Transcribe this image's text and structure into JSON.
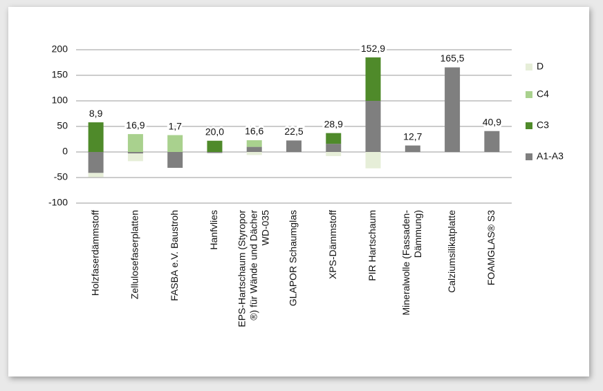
{
  "chart_data": {
    "type": "stacked_bar",
    "categories": [
      [
        "Holzfaserdämmstoff"
      ],
      [
        "Zellulosefaserplatten"
      ],
      [
        "FASBA e.V. Baustroh"
      ],
      [
        "Hanfvlies"
      ],
      [
        "EPS-Hartschaum (Styropor",
        "®) für Wände und Dächer",
        "WD-035"
      ],
      [
        "GLAPOR Schaumglas"
      ],
      [
        "XPS-Dämmstoff"
      ],
      [
        "PIR Hartschaum"
      ],
      [
        "Mineralwolle (Fassaden-",
        "Dämmung)"
      ],
      [
        "Calziumsilikatplatte"
      ],
      [
        "FOAMGLAS® S3"
      ]
    ],
    "series": [
      {
        "name": "A1-A3",
        "color": "#7f7f7f",
        "values": [
          -41,
          -3,
          -31,
          -2,
          10,
          22.5,
          16,
          100,
          12.7,
          165.5,
          40.9
        ]
      },
      {
        "name": "C3",
        "color": "#4f8a2a",
        "values": [
          58,
          0,
          0,
          22,
          0,
          0,
          21,
          85,
          0,
          0,
          0
        ]
      },
      {
        "name": "C4",
        "color": "#a9d18e",
        "values": [
          0,
          35,
          33,
          0,
          13,
          0,
          0,
          0,
          0,
          0,
          0
        ]
      },
      {
        "name": "D",
        "color": "#e6eed8",
        "values": [
          -8,
          -15,
          0,
          0,
          -6,
          0,
          -8,
          -32,
          0,
          0,
          0
        ]
      }
    ],
    "totals": [
      8.9,
      16.9,
      1.7,
      20.0,
      16.6,
      22.5,
      28.9,
      152.9,
      12.7,
      165.5,
      40.9
    ],
    "value_labels": [
      "8,9",
      "16,9",
      "1,7",
      "20,0",
      "16,6",
      "22,5",
      "28,9",
      "152,9",
      "12,7",
      "165,5",
      "40,9"
    ],
    "ylim": [
      -100,
      200
    ],
    "yticks": [
      -100,
      -50,
      0,
      50,
      100,
      150,
      200
    ],
    "grid": true,
    "legend": "right"
  }
}
